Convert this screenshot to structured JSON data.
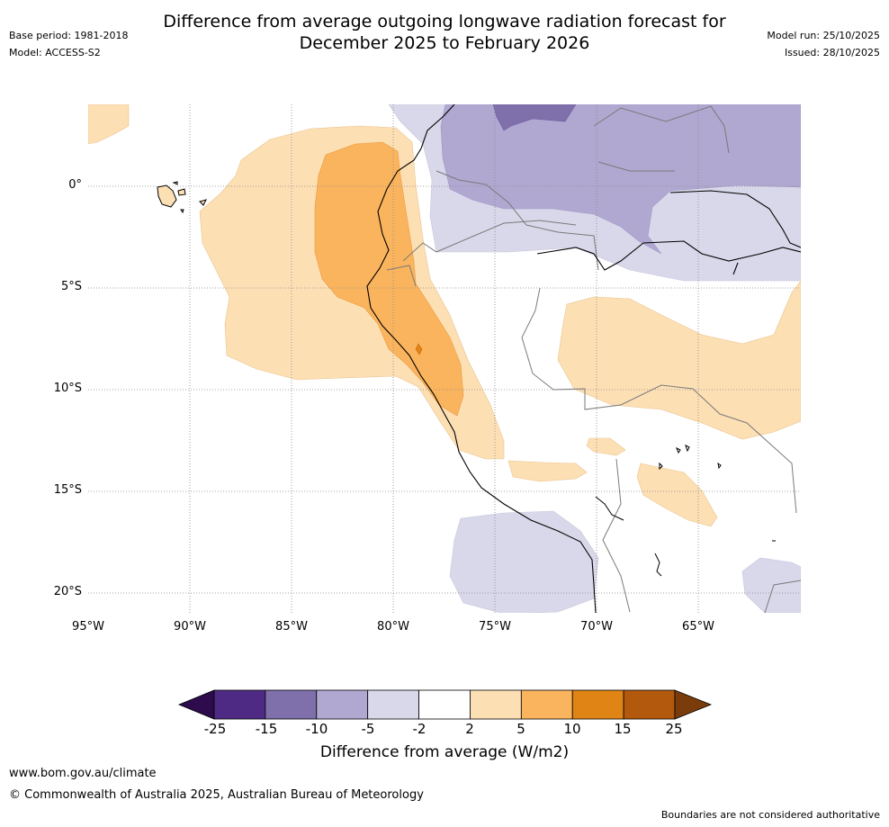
{
  "header": {
    "title_line1": "Difference from average outgoing longwave radiation forecast for",
    "title_line2": "December 2025 to February 2026",
    "base_period": "Base period: 1981-2018",
    "model": "Model: ACCESS-S2",
    "model_run": "Model run: 25/10/2025",
    "issued": "Issued: 28/10/2025"
  },
  "map": {
    "lat_ticks": [
      "0°",
      "5°S",
      "10°S",
      "15°S",
      "20°S"
    ],
    "lon_ticks": [
      "95°W",
      "90°W",
      "85°W",
      "80°W",
      "75°W",
      "70°W",
      "65°W"
    ],
    "lat_values": [
      0,
      -5,
      -10,
      -15,
      -20
    ],
    "lon_values": [
      -95,
      -90,
      -85,
      -80,
      -75,
      -70,
      -65
    ]
  },
  "colorbar": {
    "ticks": [
      "-25",
      "-15",
      "-10",
      "-5",
      "-2",
      "2",
      "5",
      "10",
      "15",
      "25"
    ],
    "colors": [
      "#4f2a85",
      "#7f6fab",
      "#b0a8d1",
      "#d8d8ea",
      "#ffffff",
      "#fddfb4",
      "#fbb45e",
      "#e08415",
      "#b3590d"
    ],
    "under_color": "#2d0b4d",
    "over_color": "#7a3c0a",
    "label": "Difference from average (W/m2)"
  },
  "footer": {
    "url": "www.bom.gov.au/climate",
    "copyright": "© Commonwealth of Australia 2025, Australian Bureau of Meteorology",
    "note": "Boundaries are not considered authoritative"
  }
}
